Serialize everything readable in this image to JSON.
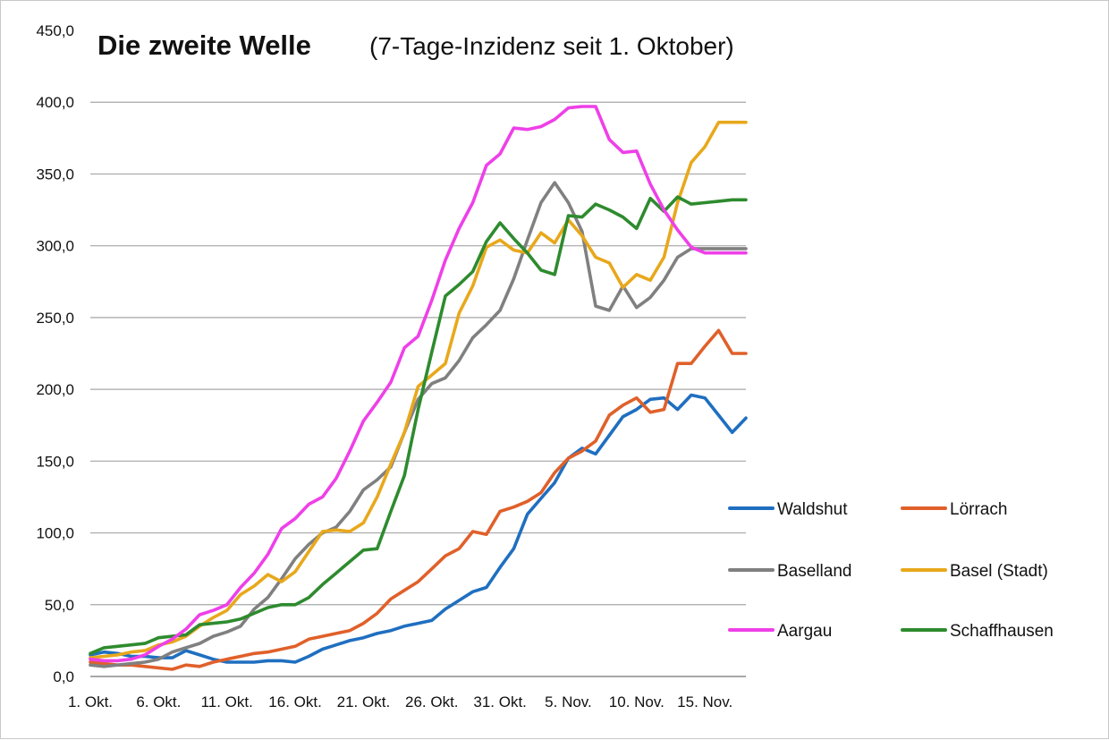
{
  "chart_data": {
    "type": "line",
    "title": "Die zweite Welle",
    "subtitle": "(7-Tage-Inzidenz seit 1. Oktober)",
    "xlabel": "",
    "ylabel": "",
    "ylim": [
      0,
      450
    ],
    "yticks": [
      "0,0",
      "50,0",
      "100,0",
      "150,0",
      "200,0",
      "250,0",
      "300,0",
      "350,0",
      "400,0",
      "450,0"
    ],
    "xticks": [
      "1. Okt.",
      "6. Okt.",
      "11. Okt.",
      "16. Okt.",
      "21. Okt.",
      "26. Okt.",
      "31. Okt.",
      "5. Nov.",
      "10. Nov.",
      "15. Nov."
    ],
    "x_start": "1. Okt.",
    "x_end": "18. Nov.",
    "grid": "horizontal",
    "legend_position": "bottom-right",
    "series": [
      {
        "name": "Waldshut",
        "color": "#1f6fc0",
        "values": [
          15,
          17,
          16,
          14,
          14,
          13,
          13,
          18,
          15,
          12,
          10,
          10,
          10,
          11,
          11,
          10,
          14,
          19,
          22,
          25,
          27,
          30,
          32,
          35,
          37,
          39,
          47,
          53,
          59,
          62,
          76,
          89,
          113,
          124,
          135,
          152,
          159,
          155,
          168,
          181,
          186,
          193,
          194,
          186,
          196,
          194,
          182,
          170,
          180
        ]
      },
      {
        "name": "Lörrach",
        "color": "#e0602a",
        "values": [
          10,
          9,
          8,
          8,
          7,
          6,
          5,
          8,
          7,
          10,
          12,
          14,
          16,
          17,
          19,
          21,
          26,
          28,
          30,
          32,
          37,
          44,
          54,
          60,
          66,
          75,
          84,
          89,
          101,
          99,
          115,
          118,
          122,
          128,
          142,
          152,
          157,
          164,
          182,
          189,
          194,
          184,
          186,
          218,
          218,
          230,
          241,
          225,
          225
        ]
      },
      {
        "name": "Baselland",
        "color": "#808080",
        "values": [
          8,
          7,
          8,
          9,
          10,
          12,
          17,
          20,
          23,
          28,
          31,
          35,
          47,
          55,
          68,
          82,
          92,
          100,
          104,
          115,
          130,
          137,
          146,
          170,
          193,
          204,
          208,
          220,
          236,
          245,
          255,
          277,
          304,
          330,
          344,
          330,
          310,
          258,
          255,
          272,
          257,
          264,
          276,
          292,
          298,
          298,
          298,
          298,
          298
        ]
      },
      {
        "name": "Basel (Stadt)",
        "color": "#e8a81c",
        "values": [
          13,
          14,
          15,
          17,
          18,
          22,
          24,
          28,
          35,
          41,
          46,
          57,
          63,
          71,
          66,
          73,
          87,
          101,
          102,
          101,
          107,
          125,
          148,
          170,
          202,
          210,
          218,
          253,
          272,
          299,
          304,
          297,
          295,
          309,
          302,
          318,
          307,
          292,
          288,
          271,
          280,
          276,
          292,
          330,
          358,
          369,
          386,
          386,
          386
        ]
      },
      {
        "name": "Aargau",
        "color": "#ee40e8",
        "values": [
          12,
          11,
          11,
          12,
          15,
          21,
          26,
          33,
          43,
          46,
          50,
          62,
          72,
          85,
          103,
          110,
          120,
          125,
          138,
          157,
          178,
          191,
          205,
          229,
          237,
          262,
          290,
          312,
          330,
          356,
          364,
          382,
          381,
          383,
          388,
          396,
          397,
          397,
          374,
          365,
          366,
          343,
          325,
          311,
          299,
          295,
          295,
          295,
          295
        ]
      },
      {
        "name": "Schaffhausen",
        "color": "#2e8b2e",
        "values": [
          16,
          20,
          21,
          22,
          23,
          27,
          28,
          29,
          36,
          37,
          38,
          40,
          44,
          48,
          50,
          50,
          55,
          64,
          72,
          80,
          88,
          89,
          115,
          140,
          186,
          226,
          265,
          273,
          282,
          303,
          316,
          305,
          295,
          283,
          280,
          321,
          320,
          329,
          325,
          320,
          312,
          333,
          324,
          334,
          329,
          330,
          331,
          332,
          332
        ]
      }
    ]
  }
}
